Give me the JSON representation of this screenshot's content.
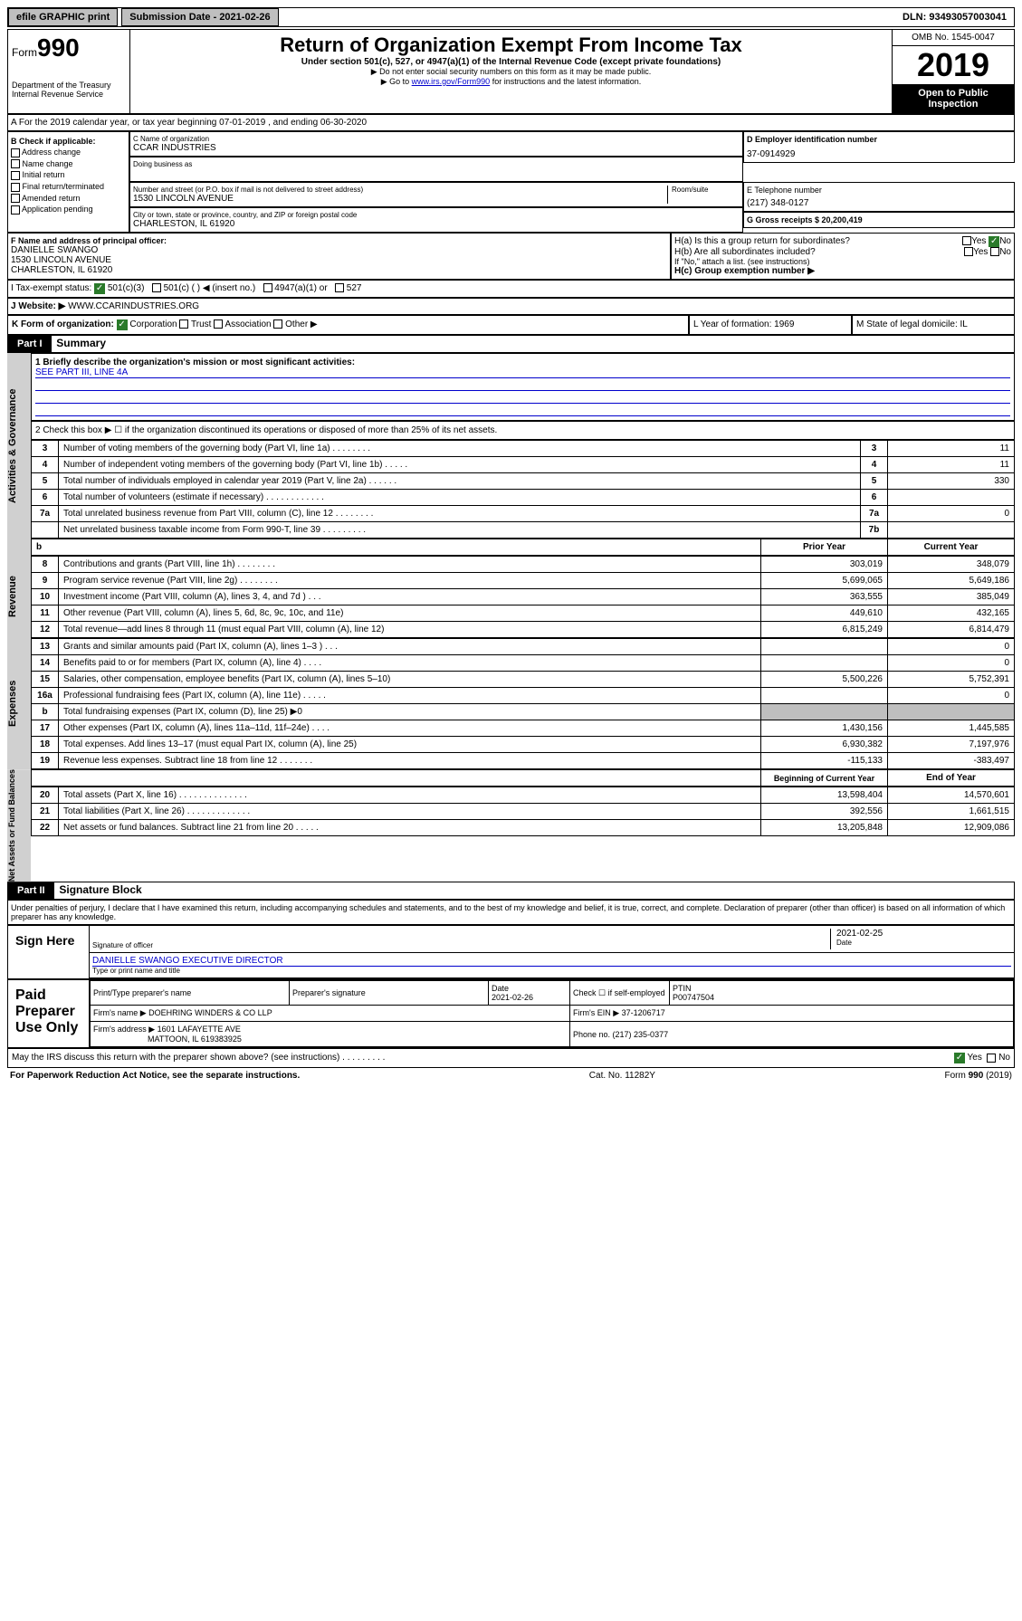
{
  "top": {
    "efile": "efile GRAPHIC print",
    "submission": "Submission Date - 2021-02-26",
    "dln": "DLN: 93493057003041"
  },
  "header": {
    "form_prefix": "Form",
    "form_num": "990",
    "dept1": "Department of the Treasury",
    "dept2": "Internal Revenue Service",
    "title": "Return of Organization Exempt From Income Tax",
    "subtitle": "Under section 501(c), 527, or 4947(a)(1) of the Internal Revenue Code (except private foundations)",
    "note1": "▶ Do not enter social security numbers on this form as it may be made public.",
    "note2_pre": "▶ Go to ",
    "note2_link": "www.irs.gov/Form990",
    "note2_post": " for instructions and the latest information.",
    "omb": "OMB No. 1545-0047",
    "year": "2019",
    "open": "Open to Public Inspection"
  },
  "section_a": {
    "text": "A For the 2019 calendar year, or tax year beginning 07-01-2019    , and ending 06-30-2020"
  },
  "box_b": {
    "title": "B Check if applicable:",
    "items": [
      "Address change",
      "Name change",
      "Initial return",
      "Final return/terminated",
      "Amended return",
      "Application pending"
    ]
  },
  "box_c": {
    "label": "C Name of organization",
    "name": "CCAR INDUSTRIES",
    "dba_label": "Doing business as",
    "addr_label": "Number and street (or P.O. box if mail is not delivered to street address)",
    "room_label": "Room/suite",
    "addr": "1530 LINCOLN AVENUE",
    "city_label": "City or town, state or province, country, and ZIP or foreign postal code",
    "city": "CHARLESTON, IL  61920"
  },
  "box_d": {
    "label": "D Employer identification number",
    "val": "37-0914929"
  },
  "box_e": {
    "label": "E Telephone number",
    "val": "(217) 348-0127"
  },
  "box_g": {
    "label": "G Gross receipts $ 20,200,419"
  },
  "box_f": {
    "label": "F  Name and address of principal officer:",
    "name": "DANIELLE SWANGO",
    "addr1": "1530 LINCOLN AVENUE",
    "addr2": "CHARLESTON, IL  61920"
  },
  "box_h": {
    "ha": "H(a)  Is this a group return for subordinates?",
    "ha_yes": "Yes",
    "ha_no": "No",
    "hb": "H(b)  Are all subordinates included?",
    "hb_yes": "Yes",
    "hb_no": "No",
    "hb_note": "If \"No,\" attach a list. (see instructions)",
    "hc": "H(c)  Group exemption number ▶"
  },
  "row_i": {
    "label": "I    Tax-exempt status:",
    "opt1": "501(c)(3)",
    "opt2": "501(c) (   ) ◀ (insert no.)",
    "opt3": "4947(a)(1) or",
    "opt4": "527"
  },
  "row_j": {
    "label": "J   Website: ▶",
    "val": "WWW.CCARINDUSTRIES.ORG"
  },
  "row_k": {
    "k_label": "K Form of organization:",
    "k_corp": "Corporation",
    "k_trust": "Trust",
    "k_assoc": "Association",
    "k_other": "Other ▶",
    "l_label": "L Year of formation: 1969",
    "m_label": "M State of legal domicile: IL"
  },
  "part1": {
    "label": "Part I",
    "title": "Summary"
  },
  "summary": {
    "line1": "1  Briefly describe the organization's mission or most significant activities:",
    "line1_val": "SEE PART III, LINE 4A",
    "line2": "2   Check this box ▶ ☐  if the organization discontinued its operations or disposed of more than 25% of its net assets.",
    "rows_top": [
      {
        "n": "3",
        "t": "Number of voting members of the governing body (Part VI, line 1a)   .    .    .    .    .    .    .    .",
        "box": "3",
        "v": "11"
      },
      {
        "n": "4",
        "t": "Number of independent voting members of the governing body (Part VI, line 1b)   .    .    .    .    .",
        "box": "4",
        "v": "11"
      },
      {
        "n": "5",
        "t": "Total number of individuals employed in calendar year 2019 (Part V, line 2a)   .    .    .    .    .    .",
        "box": "5",
        "v": "330"
      },
      {
        "n": "6",
        "t": "Total number of volunteers (estimate if necessary)   .    .    .    .    .    .    .    .    .    .    .    .",
        "box": "6",
        "v": ""
      },
      {
        "n": "7a",
        "t": "Total unrelated business revenue from Part VIII, column (C), line 12   .    .    .    .    .    .    .    .",
        "box": "7a",
        "v": "0"
      },
      {
        "n": "",
        "t": "Net unrelated business taxable income from Form 990-T, line 39   .    .    .    .    .    .    .    .    .",
        "box": "7b",
        "v": ""
      }
    ],
    "col_header_left": "b",
    "prior_year": "Prior Year",
    "current_year": "Current Year",
    "revenue_label": "Revenue",
    "revenue_rows": [
      {
        "n": "8",
        "t": "Contributions and grants (Part VIII, line 1h)   .    .    .    .    .    .    .    .",
        "py": "303,019",
        "cy": "348,079"
      },
      {
        "n": "9",
        "t": "Program service revenue (Part VIII, line 2g)   .    .    .    .    .    .    .    .",
        "py": "5,699,065",
        "cy": "5,649,186"
      },
      {
        "n": "10",
        "t": "Investment income (Part VIII, column (A), lines 3, 4, and 7d )   .    .    .",
        "py": "363,555",
        "cy": "385,049"
      },
      {
        "n": "11",
        "t": "Other revenue (Part VIII, column (A), lines 5, 6d, 8c, 9c, 10c, and 11e)",
        "py": "449,610",
        "cy": "432,165"
      },
      {
        "n": "12",
        "t": "Total revenue—add lines 8 through 11 (must equal Part VIII, column (A), line 12)",
        "py": "6,815,249",
        "cy": "6,814,479"
      }
    ],
    "expenses_label": "Expenses",
    "expense_rows": [
      {
        "n": "13",
        "t": "Grants and similar amounts paid (Part IX, column (A), lines 1–3 )   .    .    .",
        "py": "",
        "cy": "0"
      },
      {
        "n": "14",
        "t": "Benefits paid to or for members (Part IX, column (A), line 4)   .    .    .    .",
        "py": "",
        "cy": "0"
      },
      {
        "n": "15",
        "t": "Salaries, other compensation, employee benefits (Part IX, column (A), lines 5–10)",
        "py": "5,500,226",
        "cy": "5,752,391"
      },
      {
        "n": "16a",
        "t": "Professional fundraising fees (Part IX, column (A), line 11e)   .    .    .    .    .",
        "py": "",
        "cy": "0"
      },
      {
        "n": "b",
        "t": "Total fundraising expenses (Part IX, column (D), line 25) ▶0",
        "py": "shaded",
        "cy": "shaded"
      },
      {
        "n": "17",
        "t": "Other expenses (Part IX, column (A), lines 11a–11d, 11f–24e)   .    .    .    .",
        "py": "1,430,156",
        "cy": "1,445,585"
      },
      {
        "n": "18",
        "t": "Total expenses. Add lines 13–17 (must equal Part IX, column (A), line 25)",
        "py": "6,930,382",
        "cy": "7,197,976"
      },
      {
        "n": "19",
        "t": "Revenue less expenses. Subtract line 18 from line 12   .    .    .    .    .    .    .",
        "py": "-115,133",
        "cy": "-383,497"
      }
    ],
    "net_label": "Net Assets or Fund Balances",
    "begin_year": "Beginning of Current Year",
    "end_year": "End of Year",
    "net_rows": [
      {
        "n": "20",
        "t": "Total assets (Part X, line 16)   .    .    .    .    .    .    .    .    .    .    .    .    .    .",
        "py": "13,598,404",
        "cy": "14,570,601"
      },
      {
        "n": "21",
        "t": "Total liabilities (Part X, line 26)   .    .    .    .    .    .    .    .    .    .    .    .    .",
        "py": "392,556",
        "cy": "1,661,515"
      },
      {
        "n": "22",
        "t": "Net assets or fund balances. Subtract line 21 from line 20   .    .    .    .    .",
        "py": "13,205,848",
        "cy": "12,909,086"
      }
    ],
    "governance_label": "Activities & Governance"
  },
  "part2": {
    "label": "Part II",
    "title": "Signature Block"
  },
  "sig": {
    "penalty": "Under penalties of perjury, I declare that I have examined this return, including accompanying schedules and statements, and to the best of my knowledge and belief, it is true, correct, and complete. Declaration of preparer (other than officer) is based on all information of which preparer has any knowledge.",
    "sign_here": "Sign Here",
    "sig_officer": "Signature of officer",
    "sig_date": "2021-02-25",
    "date_label": "Date",
    "name_title": "DANIELLE SWANGO  EXECUTIVE DIRECTOR",
    "type_name": "Type or print name and title",
    "paid_prep": "Paid Preparer Use Only",
    "print_name_label": "Print/Type preparer's name",
    "prep_sig_label": "Preparer's signature",
    "prep_date_label": "Date",
    "prep_date": "2021-02-26",
    "check_if": "Check ☐ if self-employed",
    "ptin_label": "PTIN",
    "ptin": "P00747504",
    "firm_name_label": "Firm's name    ▶",
    "firm_name": "DOEHRING WINDERS & CO LLP",
    "firm_ein_label": "Firm's EIN ▶",
    "firm_ein": "37-1206717",
    "firm_addr_label": "Firm's address ▶",
    "firm_addr1": "1601 LAFAYETTE AVE",
    "firm_addr2": "MATTOON, IL  619383925",
    "phone_label": "Phone no. (217) 235-0377"
  },
  "footer": {
    "discuss": "May the IRS discuss this return with the preparer shown above? (see instructions)    .    .    .    .    .    .    .    .    .",
    "yes": "Yes",
    "no": "No",
    "paperwork": "For Paperwork Reduction Act Notice, see the separate instructions.",
    "cat": "Cat. No. 11282Y",
    "form": "Form 990 (2019)"
  },
  "colors": {
    "link": "#0000cc",
    "check": "#2a7a2a",
    "shaded": "#bfbfbf"
  }
}
